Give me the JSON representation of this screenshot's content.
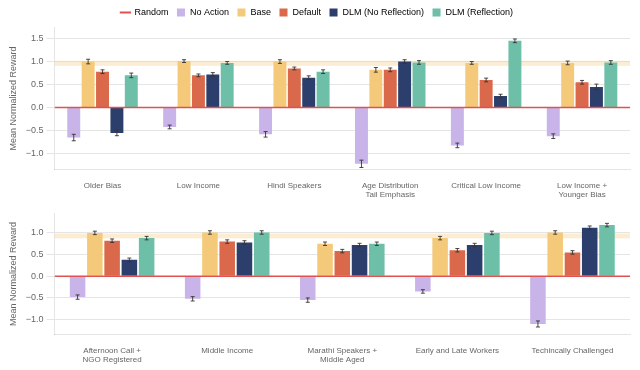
{
  "chart_data": [
    {
      "type": "bar",
      "categories": [
        "Older Bias",
        "Low Income",
        "Hindi Speakers",
        "Age Distribution\nTail Emphasis",
        "Critical Low Income",
        "Low Income +\nYounger Bias"
      ],
      "y_label": "Mean Normalized Reward",
      "series": [
        {
          "name": "No Action",
          "color": "#c8b4e8",
          "values": [
            -0.65,
            -0.42,
            -0.58,
            -1.22,
            -0.82,
            -0.62
          ],
          "errors": [
            0.07,
            0.04,
            0.06,
            0.08,
            0.05,
            0.05
          ]
        },
        {
          "name": "Base",
          "color": "#f5c97a",
          "values": [
            1.0,
            1.01,
            1.0,
            0.82,
            0.97,
            0.97
          ],
          "errors": [
            0.05,
            0.03,
            0.04,
            0.05,
            0.03,
            0.04
          ]
        },
        {
          "name": "Default",
          "color": "#d9694a",
          "values": [
            0.78,
            0.7,
            0.85,
            0.82,
            0.6,
            0.55
          ],
          "errors": [
            0.04,
            0.03,
            0.03,
            0.04,
            0.04,
            0.04
          ]
        },
        {
          "name": "DLM (No Reflection)",
          "color": "#2c3e6b",
          "values": [
            -0.55,
            0.72,
            0.65,
            1.0,
            0.25,
            0.45
          ],
          "errors": [
            0.06,
            0.04,
            0.04,
            0.04,
            0.04,
            0.06
          ]
        },
        {
          "name": "DLM (Reflection)",
          "color": "#6dbfa8",
          "values": [
            0.7,
            0.97,
            0.78,
            0.98,
            1.45,
            0.98
          ],
          "errors": [
            0.05,
            0.03,
            0.04,
            0.04,
            0.04,
            0.04
          ]
        }
      ],
      "hlines": [
        {
          "name": "Random",
          "value": 0,
          "color": "#e05252"
        }
      ],
      "bands": [
        {
          "from": 0.9066666666666667,
          "to": 1.0166666666666666,
          "color": "#f5c97a"
        }
      ],
      "ylim": [
        -1.35,
        1.75
      ],
      "yticks": [
        {
          "value": -1,
          "label": "−1.0"
        },
        {
          "value": -0.5,
          "label": "−0.5"
        },
        {
          "value": 0,
          "label": "0.0"
        },
        0.5,
        {
          "value": 1,
          "label": "1.0"
        },
        1.5
      ],
      "grid": true,
      "legend": "top"
    },
    {
      "type": "bar",
      "categories": [
        "Afternoon Call +\nNGO Registered",
        "Middle Income",
        "Marathi Speakers +\nMiddle Aged",
        "Early and Late Workers",
        "Techincally Challenged"
      ],
      "y_label": "Mean Normalized Reward",
      "series": [
        {
          "name": "No Action",
          "color": "#c8b4e8",
          "values": [
            -0.48,
            -0.52,
            -0.55,
            -0.35,
            -1.1
          ],
          "errors": [
            0.05,
            0.05,
            0.05,
            0.04,
            0.07
          ]
        },
        {
          "name": "Base",
          "color": "#f5c97a",
          "values": [
            1.0,
            1.01,
            0.75,
            0.88,
            1.01
          ],
          "errors": [
            0.04,
            0.04,
            0.04,
            0.04,
            0.04
          ]
        },
        {
          "name": "Default",
          "color": "#d9694a",
          "values": [
            0.82,
            0.8,
            0.58,
            0.6,
            0.55
          ],
          "errors": [
            0.04,
            0.04,
            0.04,
            0.04,
            0.04
          ]
        },
        {
          "name": "DLM (No Reflection)",
          "color": "#2c3e6b",
          "values": [
            0.38,
            0.78,
            0.72,
            0.72,
            1.12
          ],
          "errors": [
            0.04,
            0.04,
            0.04,
            0.04,
            0.04
          ]
        },
        {
          "name": "DLM (Reflection)",
          "color": "#6dbfa8",
          "values": [
            0.88,
            1.01,
            0.75,
            1.0,
            1.18
          ],
          "errors": [
            0.04,
            0.04,
            0.04,
            0.04,
            0.04
          ]
        }
      ],
      "hlines": [
        {
          "name": "Random",
          "value": 0,
          "color": "#e05252"
        }
      ],
      "bands": [
        {
          "from": 0.875,
          "to": 0.985,
          "color": "#f5c97a"
        }
      ],
      "ylim": [
        -1.35,
        1.45
      ],
      "yticks": [
        {
          "value": -1,
          "label": "−1.0"
        },
        {
          "value": -0.5,
          "label": "−0.5"
        },
        {
          "value": 0,
          "label": "0.0"
        },
        0.5,
        {
          "value": 1,
          "label": "1.0"
        }
      ],
      "grid": true
    }
  ]
}
